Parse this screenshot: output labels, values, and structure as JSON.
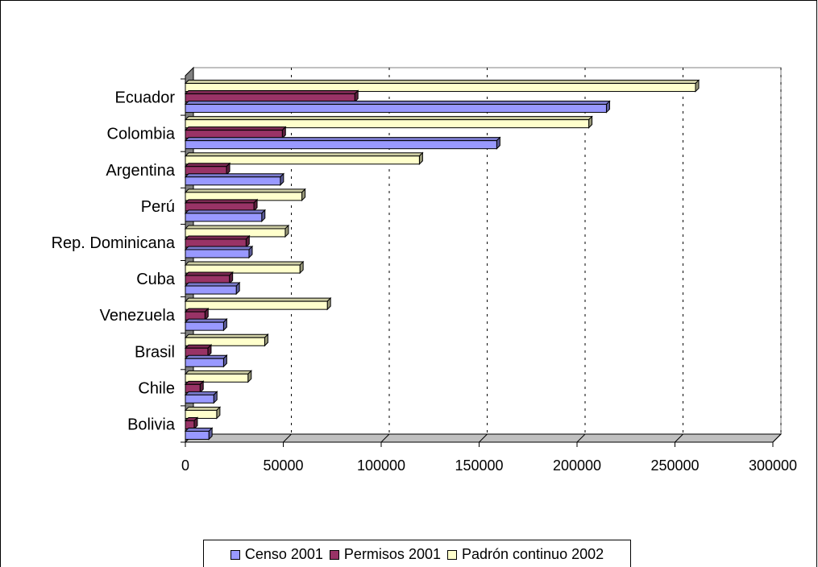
{
  "chart_data": {
    "type": "bar",
    "orientation": "horizontal",
    "title": "",
    "xlabel": "",
    "ylabel": "",
    "categories": [
      "Bolivia",
      "Chile",
      "Brasil",
      "Venezuela",
      "Cuba",
      "Rep. Dominicana",
      "Perú",
      "Argentina",
      "Colombia",
      "Ecuador"
    ],
    "series": [
      {
        "name": "Censo 2001",
        "color": "#9999ff",
        "values": [
          12000,
          14500,
          19500,
          19500,
          26000,
          32500,
          39000,
          48500,
          159000,
          215000
        ]
      },
      {
        "name": "Permisos 2001",
        "color": "#993366",
        "values": [
          4500,
          7500,
          11500,
          10000,
          22500,
          31000,
          35000,
          21000,
          49500,
          86500
        ]
      },
      {
        "name": "Padrón continuo 2002",
        "color": "#ffffcc",
        "values": [
          16000,
          32000,
          40500,
          72500,
          58500,
          51000,
          59500,
          119500,
          206000,
          260500
        ]
      }
    ],
    "xlim": [
      0,
      300000
    ],
    "xticks": [
      "0",
      "50000",
      "100000",
      "150000",
      "200000",
      "250000",
      "300000"
    ],
    "gridlines": "vertical dashed",
    "legend_position": "bottom"
  }
}
